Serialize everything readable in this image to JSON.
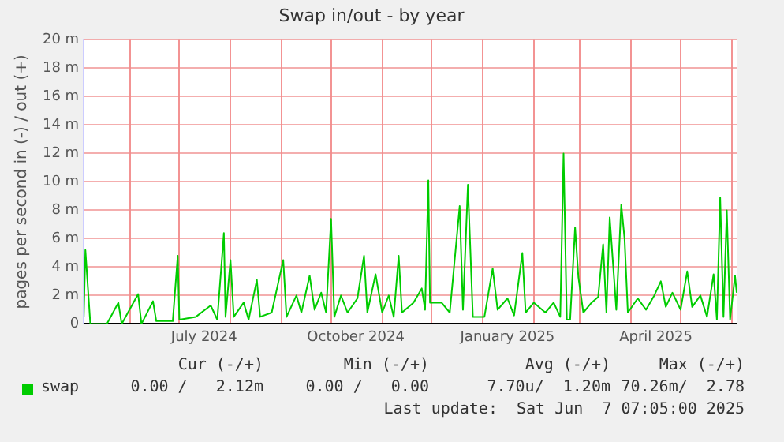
{
  "chart_data": {
    "type": "line",
    "title": "Swap in/out - by year",
    "ylabel": "pages per second in (-) / out (+)",
    "x": [
      "2024-05-04",
      "2024-05-05",
      "2024-05-08",
      "2024-05-18",
      "2024-05-25",
      "2024-05-27",
      "2024-06-06",
      "2024-06-08",
      "2024-06-15",
      "2024-06-17",
      "2024-06-27",
      "2024-06-30",
      "2024-07-01",
      "2024-07-11",
      "2024-07-20",
      "2024-07-24",
      "2024-07-28",
      "2024-07-29",
      "2024-08-01",
      "2024-08-03",
      "2024-08-09",
      "2024-08-12",
      "2024-08-17",
      "2024-08-19",
      "2024-08-26",
      "2024-09-02",
      "2024-09-04",
      "2024-09-10",
      "2024-09-13",
      "2024-09-18",
      "2024-09-21",
      "2024-09-25",
      "2024-09-28",
      "2024-10-01",
      "2024-10-03",
      "2024-10-07",
      "2024-10-11",
      "2024-10-17",
      "2024-10-21",
      "2024-10-23",
      "2024-10-28",
      "2024-11-01",
      "2024-11-05",
      "2024-11-08",
      "2024-11-11",
      "2024-11-13",
      "2024-11-20",
      "2024-11-25",
      "2024-11-27",
      "2024-11-29",
      "2024-11-30",
      "2024-12-07",
      "2024-12-12",
      "2024-12-18",
      "2024-12-20",
      "2024-12-23",
      "2024-12-26",
      "2025-01-02",
      "2025-01-07",
      "2025-01-10",
      "2025-01-16",
      "2025-01-20",
      "2025-01-25",
      "2025-01-27",
      "2025-02-01",
      "2025-02-08",
      "2025-02-13",
      "2025-02-17",
      "2025-02-19",
      "2025-02-21",
      "2025-02-23",
      "2025-02-26",
      "2025-02-28",
      "2025-03-03",
      "2025-03-08",
      "2025-03-12",
      "2025-03-15",
      "2025-03-17",
      "2025-03-19",
      "2025-03-23",
      "2025-03-26",
      "2025-03-28",
      "2025-03-30",
      "2025-04-05",
      "2025-04-10",
      "2025-04-15",
      "2025-04-19",
      "2025-04-22",
      "2025-04-26",
      "2025-05-01",
      "2025-05-05",
      "2025-05-08",
      "2025-05-13",
      "2025-05-17",
      "2025-05-21",
      "2025-05-23",
      "2025-05-25",
      "2025-05-27",
      "2025-05-29",
      "2025-05-31",
      "2025-06-03",
      "2025-06-04"
    ],
    "series": [
      {
        "name": "swap",
        "color": "#00cc00",
        "values": [
          0.5,
          5.2,
          0,
          0,
          1.5,
          0,
          2.1,
          0,
          1.6,
          0.2,
          0.2,
          4.8,
          0.3,
          0.5,
          1.3,
          0.3,
          6.4,
          0.5,
          4.5,
          0.5,
          1.5,
          0.3,
          3.1,
          0.5,
          0.8,
          4.5,
          0.5,
          2,
          0.8,
          3.4,
          1,
          2.2,
          0.8,
          7.4,
          0.5,
          2,
          0.8,
          1.8,
          4.8,
          0.8,
          3.5,
          0.8,
          2,
          0.5,
          4.8,
          0.8,
          1.5,
          2.5,
          1,
          10.1,
          1.5,
          1.5,
          0.8,
          8.3,
          1,
          9.8,
          0.5,
          0.5,
          3.9,
          1,
          1.8,
          0.6,
          5.0,
          0.8,
          1.5,
          0.8,
          1.5,
          0.5,
          12.0,
          0.3,
          0.3,
          6.8,
          3.3,
          0.8,
          1.5,
          1.9,
          5.6,
          0.8,
          7.5,
          1,
          8.4,
          6.0,
          0.8,
          1.8,
          1,
          2,
          3.0,
          1.2,
          2.2,
          1,
          3.7,
          1.2,
          2,
          0.5,
          3.5,
          0.3,
          8.9,
          0.5,
          8.0,
          0.3,
          3.4,
          2.2
        ]
      }
    ],
    "xlim": [
      "2024-05-04",
      "2025-06-04"
    ],
    "xticks": [
      {
        "value": "2024-06-01",
        "label": null
      },
      {
        "value": "2024-07-01",
        "label": null
      },
      {
        "value": "2024-07-16",
        "label": "July 2024"
      },
      {
        "value": "2024-08-01",
        "label": null
      },
      {
        "value": "2024-09-01",
        "label": null
      },
      {
        "value": "2024-10-01",
        "label": null
      },
      {
        "value": "2024-10-16",
        "label": "October 2024"
      },
      {
        "value": "2024-11-01",
        "label": null
      },
      {
        "value": "2024-12-01",
        "label": null
      },
      {
        "value": "2025-01-01",
        "label": null
      },
      {
        "value": "2025-01-16",
        "label": "January 2025"
      },
      {
        "value": "2025-02-01",
        "label": null
      },
      {
        "value": "2025-03-01",
        "label": null
      },
      {
        "value": "2025-04-01",
        "label": null
      },
      {
        "value": "2025-04-16",
        "label": "April 2025"
      },
      {
        "value": "2025-05-01",
        "label": null
      },
      {
        "value": "2025-06-01",
        "label": null
      }
    ],
    "ylim": [
      0,
      20
    ],
    "yticks": [
      {
        "value": 0,
        "label": "0"
      },
      {
        "value": 2,
        "label": "2 m"
      },
      {
        "value": 4,
        "label": "4 m"
      },
      {
        "value": 6,
        "label": "6 m"
      },
      {
        "value": 8,
        "label": "8 m"
      },
      {
        "value": 10,
        "label": "10 m"
      },
      {
        "value": 12,
        "label": "12 m"
      },
      {
        "value": 14,
        "label": "14 m"
      },
      {
        "value": 16,
        "label": "16 m"
      },
      {
        "value": 18,
        "label": "18 m"
      },
      {
        "value": 20,
        "label": "20 m"
      }
    ],
    "grid": true,
    "legend": "bottom left",
    "marker": "none",
    "line_style": "solid",
    "annotations": [
      "Cur (-/+)",
      "Min (-/+)",
      "Avg (-/+)",
      "Max (-/+)",
      "0.00 /   2.12m",
      "0.00 /   0.00",
      "7.70u/  1.20m",
      "70.26m/  2.78",
      "Last update:  Sat Jun  7 07:05:00 2025"
    ]
  }
}
